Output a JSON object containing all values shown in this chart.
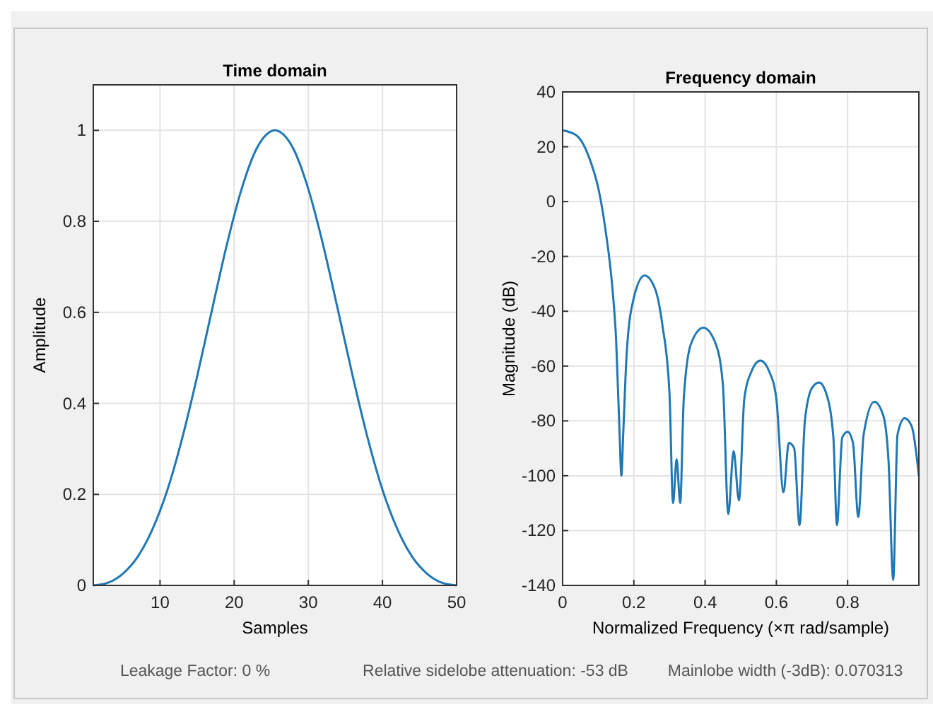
{
  "chart_data": [
    {
      "type": "line",
      "title": "Time domain",
      "xlabel": "Samples",
      "ylabel": "Amplitude",
      "xlim": [
        1,
        50
      ],
      "ylim": [
        0,
        1.1
      ],
      "xticks": [
        10,
        20,
        30,
        40,
        50
      ],
      "yticks": [
        0,
        0.2,
        0.4,
        0.6,
        0.8,
        1
      ],
      "grid": true,
      "series": [
        {
          "color": "#1f77b4",
          "x": [
            1,
            3,
            5,
            7,
            9,
            11,
            13,
            15,
            17,
            19,
            21,
            23,
            25,
            25.5,
            26,
            28,
            30,
            32,
            34,
            36,
            38,
            40,
            42,
            44,
            46,
            48,
            50
          ],
          "values": [
            0,
            0.006,
            0.026,
            0.063,
            0.124,
            0.21,
            0.324,
            0.459,
            0.605,
            0.748,
            0.871,
            0.959,
            0.998,
            1,
            0.998,
            0.959,
            0.871,
            0.748,
            0.605,
            0.459,
            0.324,
            0.21,
            0.124,
            0.063,
            0.026,
            0.006,
            0
          ]
        }
      ],
      "annotations": [
        "Leakage Factor: 0 %"
      ]
    },
    {
      "type": "line",
      "title": "Frequency domain",
      "xlabel": "Normalized Frequency  (×π rad/sample)",
      "ylabel": "Magnitude (dB)",
      "xlim": [
        0,
        1
      ],
      "ylim": [
        -140,
        40
      ],
      "xticks": [
        0,
        0.2,
        0.4,
        0.6,
        0.8
      ],
      "yticks": [
        -140,
        -120,
        -100,
        -80,
        -60,
        -40,
        -20,
        0,
        20,
        40
      ],
      "grid": true,
      "series": [
        {
          "color": "#1f77b4",
          "x": [
            0,
            0.04,
            0.08,
            0.1,
            0.12,
            0.14,
            0.15,
            0.16,
            0.165,
            0.17,
            0.18,
            0.2,
            0.23,
            0.26,
            0.28,
            0.3,
            0.31,
            0.32,
            0.33,
            0.34,
            0.36,
            0.395,
            0.43,
            0.45,
            0.465,
            0.48,
            0.495,
            0.51,
            0.53,
            0.555,
            0.58,
            0.6,
            0.62,
            0.635,
            0.65,
            0.665,
            0.68,
            0.7,
            0.72,
            0.74,
            0.76,
            0.77,
            0.785,
            0.8,
            0.815,
            0.83,
            0.845,
            0.875,
            0.9,
            0.915,
            0.928,
            0.94,
            0.96,
            0.98,
            1
          ],
          "values": [
            26,
            24,
            14,
            5,
            -10,
            -32,
            -50,
            -85,
            -100,
            -85,
            -55,
            -35,
            -27,
            -32,
            -45,
            -70,
            -110,
            -94,
            -110,
            -72,
            -52,
            -46,
            -52,
            -67,
            -114,
            -91,
            -109,
            -72,
            -62,
            -58,
            -62,
            -72,
            -106,
            -88,
            -90,
            -118,
            -80,
            -68,
            -66,
            -70,
            -86,
            -118,
            -86,
            -84,
            -88,
            -115,
            -85,
            -73,
            -78,
            -95,
            -138,
            -85,
            -79,
            -82,
            -100
          ]
        }
      ],
      "annotations": [
        "Relative sidelobe attenuation: -53 dB",
        "Mainlobe width (-3dB): 0.070313"
      ]
    }
  ]
}
